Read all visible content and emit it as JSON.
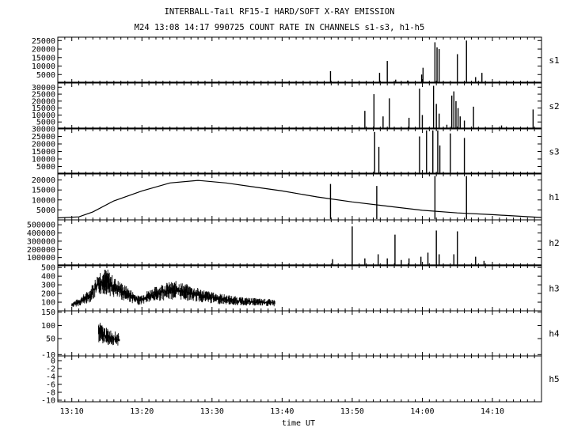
{
  "chart_data": {
    "type": "line",
    "title": "INTERBALL-Tail RF15-I HARD/SOFT X-RAY EMISSION",
    "subtitle": "M24  13:08 14:17 990725  COUNT RATE IN CHANNELS s1-s3, h1-h5",
    "xlabel": "time UT",
    "x_ticks": [
      "13:10",
      "13:20",
      "13:30",
      "13:40",
      "13:50",
      "14:00",
      "14:10"
    ],
    "xlim": [
      "13:08",
      "14:17"
    ],
    "panels": [
      {
        "name": "s1",
        "ylim": [
          0,
          27000
        ],
        "y_ticks": [
          5000,
          10000,
          15000,
          20000,
          25000
        ],
        "spikes": [
          {
            "t": "13:46.9",
            "v": 7000
          },
          {
            "t": "13:53.9",
            "v": 6000
          },
          {
            "t": "13:55.0",
            "v": 13000
          },
          {
            "t": "13:56.2",
            "v": 2000
          },
          {
            "t": "13:57.9",
            "v": 1500
          },
          {
            "t": "13:59.9",
            "v": 5000
          },
          {
            "t": "14:00.1",
            "v": 9000
          },
          {
            "t": "14:01.8",
            "v": 24000
          },
          {
            "t": "14:02.1",
            "v": 21000
          },
          {
            "t": "14:02.4",
            "v": 20000
          },
          {
            "t": "14:05.0",
            "v": 17000
          },
          {
            "t": "14:06.3",
            "v": 25000
          },
          {
            "t": "14:07.6",
            "v": 3500
          },
          {
            "t": "14:08.5",
            "v": 6000
          }
        ]
      },
      {
        "name": "s2",
        "ylim": [
          0,
          33000
        ],
        "y_ticks": [
          5000,
          10000,
          15000,
          20000,
          25000,
          30000
        ],
        "spikes": [
          {
            "t": "13:51.8",
            "v": 13000
          },
          {
            "t": "13:53.1",
            "v": 25000
          },
          {
            "t": "13:54.4",
            "v": 9000
          },
          {
            "t": "13:55.3",
            "v": 22000
          },
          {
            "t": "13:58.1",
            "v": 8000
          },
          {
            "t": "13:59.6",
            "v": 29000
          },
          {
            "t": "14:00.0",
            "v": 10000
          },
          {
            "t": "14:01.6",
            "v": 31000
          },
          {
            "t": "14:02.0",
            "v": 18000
          },
          {
            "t": "14:02.4",
            "v": 11000
          },
          {
            "t": "14:03.5",
            "v": 3000
          },
          {
            "t": "14:04.2",
            "v": 24000
          },
          {
            "t": "14:04.5",
            "v": 27000
          },
          {
            "t": "14:04.8",
            "v": 20000
          },
          {
            "t": "14:05.1",
            "v": 15000
          },
          {
            "t": "14:05.4",
            "v": 9000
          },
          {
            "t": "14:06.0",
            "v": 6000
          },
          {
            "t": "14:07.3",
            "v": 16000
          },
          {
            "t": "14:11.3",
            "v": 2500
          },
          {
            "t": "14:15.8",
            "v": 14000
          }
        ]
      },
      {
        "name": "s3",
        "ylim": [
          0,
          30000
        ],
        "y_ticks": [
          5000,
          10000,
          15000,
          20000,
          25000,
          30000
        ],
        "spikes": [
          {
            "t": "13:53.2",
            "v": 28000
          },
          {
            "t": "13:53.8",
            "v": 18000
          },
          {
            "t": "13:59.6",
            "v": 25000
          },
          {
            "t": "14:00.6",
            "v": 29000
          },
          {
            "t": "14:01.5",
            "v": 29000
          },
          {
            "t": "14:02.2",
            "v": 29000
          },
          {
            "t": "14:02.5",
            "v": 19000
          },
          {
            "t": "14:04.0",
            "v": 27000
          },
          {
            "t": "14:06.0",
            "v": 24000
          }
        ]
      },
      {
        "name": "h1",
        "ylim": [
          0,
          23000
        ],
        "y_ticks": [
          5000,
          10000,
          15000,
          20000
        ],
        "curve": [
          {
            "t": "13:08",
            "v": 1000
          },
          {
            "t": "13:11",
            "v": 1500
          },
          {
            "t": "13:13",
            "v": 4000
          },
          {
            "t": "13:16",
            "v": 9500
          },
          {
            "t": "13:20",
            "v": 14500
          },
          {
            "t": "13:24",
            "v": 18500
          },
          {
            "t": "13:28",
            "v": 19800
          },
          {
            "t": "13:32",
            "v": 18500
          },
          {
            "t": "13:36",
            "v": 16500
          },
          {
            "t": "13:40",
            "v": 14500
          },
          {
            "t": "13:45",
            "v": 11500
          },
          {
            "t": "13:50",
            "v": 9000
          },
          {
            "t": "13:55",
            "v": 6900
          },
          {
            "t": "14:00",
            "v": 4800
          },
          {
            "t": "14:05",
            "v": 3500
          },
          {
            "t": "14:10",
            "v": 2600
          },
          {
            "t": "14:17",
            "v": 1200
          }
        ],
        "spikes": [
          {
            "t": "13:46.9",
            "v": 18000
          },
          {
            "t": "13:53.5",
            "v": 17000
          },
          {
            "t": "14:01.8",
            "v": 22000
          },
          {
            "t": "14:06.3",
            "v": 22000
          }
        ]
      },
      {
        "name": "h2",
        "ylim": [
          0,
          560000
        ],
        "y_ticks": [
          100000,
          200000,
          300000,
          400000,
          500000
        ],
        "spikes": [
          {
            "t": "13:47.2",
            "v": 80000
          },
          {
            "t": "13:50.0",
            "v": 480000
          },
          {
            "t": "13:51.8",
            "v": 90000
          },
          {
            "t": "13:53.7",
            "v": 140000
          },
          {
            "t": "13:55.0",
            "v": 90000
          },
          {
            "t": "13:56.1",
            "v": 380000
          },
          {
            "t": "13:57.0",
            "v": 70000
          },
          {
            "t": "13:58.1",
            "v": 90000
          },
          {
            "t": "13:59.8",
            "v": 110000
          },
          {
            "t": "14:00.8",
            "v": 160000
          },
          {
            "t": "14:02.0",
            "v": 430000
          },
          {
            "t": "14:02.4",
            "v": 140000
          },
          {
            "t": "14:04.5",
            "v": 140000
          },
          {
            "t": "14:05.0",
            "v": 420000
          },
          {
            "t": "14:07.6",
            "v": 110000
          },
          {
            "t": "14:08.8",
            "v": 60000
          }
        ]
      },
      {
        "name": "h3",
        "ylim": [
          0,
          520
        ],
        "y_ticks": [
          100,
          200,
          300,
          400,
          500
        ],
        "curve": [
          {
            "t": "13:10",
            "v": 70
          },
          {
            "t": "13:11",
            "v": 100
          },
          {
            "t": "13:12.5",
            "v": 170
          },
          {
            "t": "13:14",
            "v": 330
          },
          {
            "t": "13:15",
            "v": 340
          },
          {
            "t": "13:16",
            "v": 270
          },
          {
            "t": "13:18",
            "v": 190
          },
          {
            "t": "13:19.5",
            "v": 120
          },
          {
            "t": "13:21",
            "v": 170
          },
          {
            "t": "13:23",
            "v": 220
          },
          {
            "t": "13:25",
            "v": 240
          },
          {
            "t": "13:27",
            "v": 200
          },
          {
            "t": "13:30",
            "v": 150
          },
          {
            "t": "13:34",
            "v": 110
          },
          {
            "t": "13:39",
            "v": 90
          }
        ]
      },
      {
        "name": "h4",
        "ylim": [
          -15,
          155
        ],
        "y_ticks": [
          -10,
          50,
          100,
          150
        ],
        "curve": [
          {
            "t": "13:13.8",
            "v": 75
          },
          {
            "t": "13:14.8",
            "v": 60
          },
          {
            "t": "13:16.8",
            "v": 45
          }
        ]
      },
      {
        "name": "h5",
        "ylim": [
          0,
          10.8
        ],
        "y_ticks": [
          -10,
          -8,
          -6,
          -4,
          -2,
          0
        ],
        "series": []
      }
    ]
  }
}
